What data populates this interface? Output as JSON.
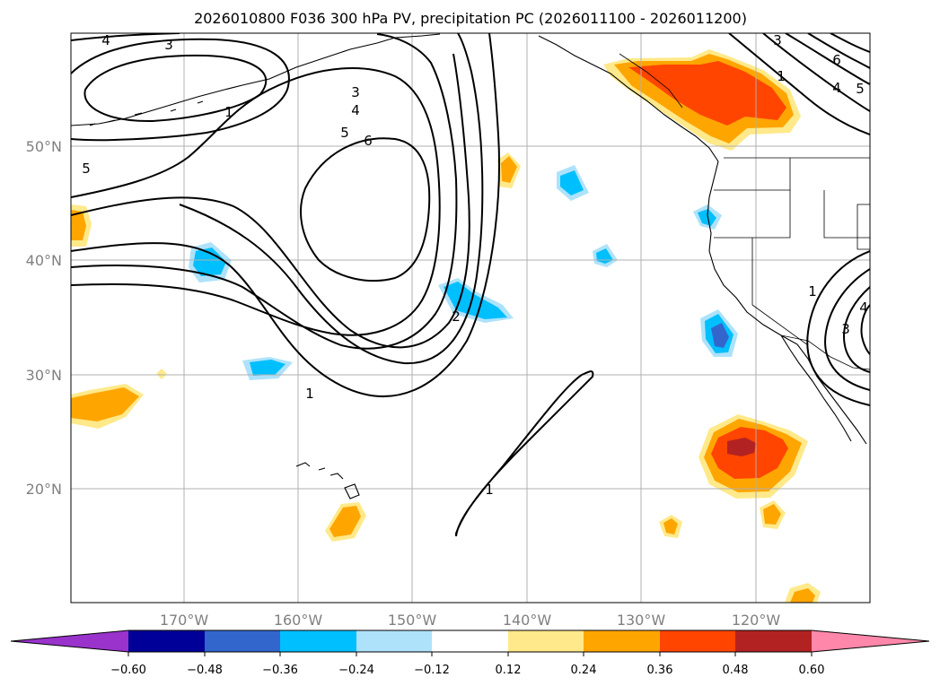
{
  "title": "2026010800 F036 300 hPa PV, precipitation PC (2026011100 - 2026011200)",
  "map": {
    "lon_range": [
      -180,
      -110
    ],
    "lat_range": [
      10,
      60
    ],
    "lon_labels": [
      "170°W",
      "160°W",
      "150°W",
      "140°W",
      "130°W",
      "120°W"
    ],
    "lat_labels": [
      "50°N",
      "40°N",
      "30°N",
      "20°N"
    ],
    "contour_labels": [
      "4",
      "3",
      "1",
      "3",
      "4",
      "5",
      "6",
      "5",
      "1",
      "2",
      "1",
      "6",
      "3",
      "1",
      "4",
      "5",
      "1",
      "4",
      "3"
    ]
  },
  "colorbar": {
    "colors": [
      "#9933cc",
      "#000099",
      "#3366cc",
      "#00bfff",
      "#aee2fa",
      "#ffffff",
      "#ffe98a",
      "#ffa500",
      "#ff4500",
      "#b22222",
      "#ff88aa"
    ],
    "tick_labels": [
      "−0.60",
      "−0.48",
      "−0.36",
      "−0.24",
      "−0.12",
      "0.12",
      "0.24",
      "0.36",
      "0.48",
      "0.60"
    ]
  }
}
